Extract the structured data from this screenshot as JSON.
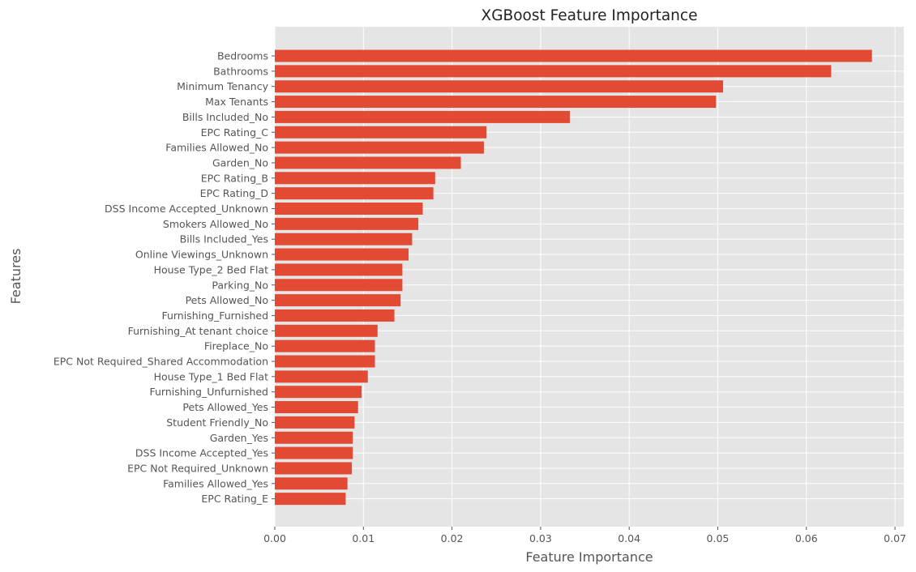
{
  "chart_data": {
    "type": "bar",
    "orientation": "horizontal",
    "title": "XGBoost Feature Importance",
    "xlabel": "Feature Importance",
    "ylabel": "Features",
    "xlim": [
      0,
      0.071
    ],
    "xticks": [
      "0.00",
      "0.01",
      "0.02",
      "0.03",
      "0.04",
      "0.05",
      "0.06",
      "0.07"
    ],
    "grid": true,
    "bar_color": "#E24A33",
    "background_color": "#E5E5E5",
    "categories": [
      "Bedrooms",
      "Bathrooms",
      "Minimum Tenancy",
      "Max Tenants",
      "Bills Included_No",
      "EPC Rating_C",
      "Families Allowed_No",
      "Garden_No",
      "EPC Rating_B",
      "EPC Rating_D",
      "DSS Income Accepted_Unknown",
      "Smokers Allowed_No",
      "Bills Included_Yes",
      "Online Viewings_Unknown",
      "House Type_2 Bed Flat",
      "Parking_No",
      "Pets Allowed_No",
      "Furnishing_Furnished",
      "Furnishing_At tenant choice",
      "Fireplace_No",
      "EPC Not Required_Shared Accommodation",
      "House Type_1 Bed Flat",
      "Furnishing_Unfurnished",
      "Pets Allowed_Yes",
      "Student Friendly_No",
      "Garden_Yes",
      "DSS Income Accepted_Yes",
      "EPC Not Required_Unknown",
      "Families Allowed_Yes",
      "EPC Rating_E"
    ],
    "values": [
      0.0674,
      0.0628,
      0.0506,
      0.0498,
      0.0333,
      0.0239,
      0.0236,
      0.021,
      0.0181,
      0.0179,
      0.0167,
      0.0162,
      0.0155,
      0.0151,
      0.0144,
      0.0144,
      0.0142,
      0.0135,
      0.0116,
      0.0113,
      0.0113,
      0.0105,
      0.0098,
      0.0094,
      0.009,
      0.0088,
      0.0088,
      0.0087,
      0.0082,
      0.008
    ]
  }
}
